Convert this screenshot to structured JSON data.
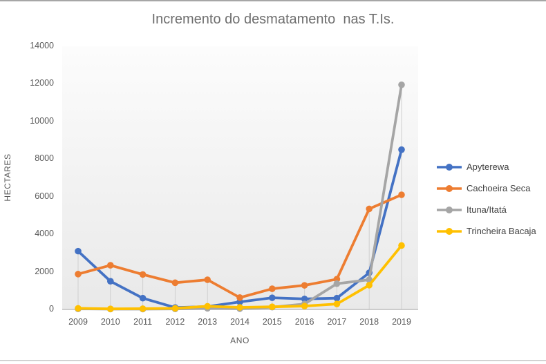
{
  "window": {
    "background": "#ffffff",
    "top_edge_color": "#a6a6a6",
    "bottom_edge_color": "#d2d2d2"
  },
  "chart_data": {
    "type": "line",
    "title": "Incremento do desmatamento  nas T.Is.",
    "xlabel": "ANO",
    "ylabel": "HECTARES",
    "categories": [
      "2009",
      "2010",
      "2011",
      "2012",
      "2013",
      "2014",
      "2015",
      "2016",
      "2017",
      "2018",
      "2019"
    ],
    "series": [
      {
        "name": "Apyterewa",
        "color": "#4472C4",
        "values": [
          3100,
          1500,
          600,
          100,
          150,
          400,
          620,
          560,
          600,
          1950,
          8500
        ]
      },
      {
        "name": "Cachoeira Seca",
        "color": "#ED7D31",
        "values": [
          1880,
          2350,
          1860,
          1420,
          1580,
          630,
          1100,
          1280,
          1610,
          5350,
          6100
        ]
      },
      {
        "name": "Ituna/Itatá",
        "color": "#A5A5A5",
        "values": [
          30,
          20,
          20,
          30,
          60,
          40,
          120,
          290,
          1370,
          1580,
          11950
        ]
      },
      {
        "name": "Trincheira Bacaja",
        "color": "#FFC000",
        "values": [
          60,
          30,
          40,
          60,
          170,
          110,
          140,
          180,
          290,
          1290,
          3400
        ]
      }
    ],
    "ylim": [
      0,
      14000
    ],
    "yticks": [
      0,
      2000,
      4000,
      6000,
      8000,
      10000,
      12000,
      14000
    ],
    "grid": "vertical drop lines per category, no horizontal gridlines",
    "legend_position": "right",
    "markers": "filled circles on every point",
    "styles": {
      "title_color": "#6e6e6e",
      "tick_color": "#595959",
      "legend_text_color": "#3f3f3f",
      "axis_line_color": "#bdbdbd",
      "drop_line_color": "#cfcfcf",
      "plot_bg_top": "#fcfcfc",
      "plot_bg_bottom": "#e9e9e9"
    }
  }
}
